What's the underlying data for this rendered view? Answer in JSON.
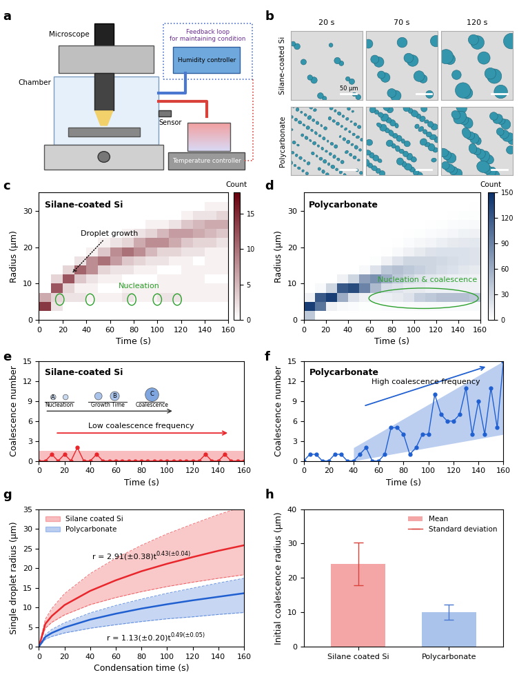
{
  "panel_labels": [
    "a",
    "b",
    "c",
    "d",
    "e",
    "f",
    "g",
    "h"
  ],
  "diagram_a": {
    "labels": {
      "microscope": "Microscope",
      "chamber": "Chamber",
      "feedback": "Feedback loop\nfor maintaining condition",
      "humidity": "Humidity controller",
      "sensor": "Sensor",
      "temperature": "Temperature controller"
    }
  },
  "images_b": {
    "times": [
      "20 s",
      "70 s",
      "120 s"
    ],
    "rows": [
      "Silane-coated Si",
      "Polycarbonate"
    ],
    "scale_bar": "50 μm"
  },
  "chart_data": [
    {
      "type": "heatmap",
      "title": "Silane-coated Si",
      "x_label": "Time (s)",
      "y_label": "Radius (μm)",
      "color": "#67000d",
      "x_edges": [
        0,
        10,
        20,
        30,
        40,
        50,
        60,
        70,
        80,
        90,
        100,
        110,
        120,
        130,
        140,
        150,
        160
      ],
      "y_edges": [
        0,
        2.5,
        5,
        7.5,
        10,
        12.5,
        15,
        17.5,
        20,
        22.5,
        25,
        27.5,
        30,
        32.5,
        35
      ],
      "counts": [
        [
          0,
          14,
          6,
          0,
          0,
          0,
          0,
          0,
          0,
          0,
          0,
          0,
          0,
          0
        ],
        [
          0,
          2,
          3,
          12,
          3,
          0,
          0,
          0,
          0,
          0,
          0,
          0,
          0,
          0
        ],
        [
          0,
          0,
          2,
          3,
          12,
          3,
          0,
          0,
          0,
          0,
          0,
          0,
          0,
          0
        ],
        [
          0,
          0,
          2,
          1,
          4,
          11,
          2,
          0,
          0,
          0,
          0,
          0,
          0,
          0
        ],
        [
          0,
          0,
          1,
          1,
          2,
          8,
          8,
          1,
          0,
          0,
          0,
          0,
          0,
          0
        ],
        [
          0,
          0,
          1,
          0,
          1,
          3,
          10,
          4,
          1,
          0,
          0,
          0,
          0,
          0
        ],
        [
          0,
          0,
          1,
          0,
          1,
          2,
          7,
          8,
          2,
          0,
          0,
          0,
          0,
          0
        ],
        [
          0,
          0,
          2,
          1,
          0,
          2,
          4,
          10,
          3,
          1,
          0,
          0,
          0,
          0
        ],
        [
          0,
          0,
          1,
          1,
          0,
          1,
          3,
          8,
          6,
          2,
          0,
          0,
          0,
          0
        ],
        [
          0,
          0,
          1,
          1,
          0,
          1,
          2,
          5,
          8,
          3,
          1,
          0,
          0,
          0
        ],
        [
          0,
          0,
          2,
          1,
          1,
          0,
          2,
          3,
          8,
          5,
          1,
          0,
          0,
          0
        ],
        [
          0,
          0,
          2,
          1,
          1,
          0,
          1,
          3,
          6,
          7,
          2,
          0,
          0,
          0
        ],
        [
          0,
          0,
          1,
          1,
          1,
          1,
          1,
          2,
          4,
          7,
          4,
          1,
          0,
          0
        ],
        [
          0,
          0,
          1,
          1,
          1,
          1,
          0,
          2,
          3,
          6,
          5,
          2,
          0,
          0
        ],
        [
          0,
          0,
          1,
          1,
          0,
          1,
          1,
          1,
          3,
          5,
          6,
          2,
          1,
          0
        ],
        [
          0,
          0,
          1,
          1,
          0,
          1,
          1,
          1,
          2,
          4,
          6,
          3,
          1,
          0
        ]
      ],
      "colorbar": {
        "label": "Count",
        "range": [
          0,
          18
        ],
        "ticks": [
          0,
          5,
          10,
          15
        ]
      },
      "xlim": [
        0,
        160
      ],
      "xticks": [
        0,
        20,
        40,
        60,
        80,
        100,
        120,
        140,
        160
      ],
      "ylim": [
        0,
        35
      ],
      "yticks": [
        0,
        10,
        20,
        30
      ],
      "annotations": [
        {
          "text": "Droplet growth",
          "color": "#000000"
        },
        {
          "text": "Nucleation",
          "color": "#2ca02c"
        }
      ]
    },
    {
      "type": "heatmap",
      "title": "Polycarbonate",
      "x_label": "Time (s)",
      "y_label": "Radius (μm)",
      "color": "#08306b",
      "x_edges": [
        0,
        10,
        20,
        30,
        40,
        50,
        60,
        70,
        80,
        90,
        100,
        110,
        120,
        130,
        140,
        150,
        160
      ],
      "y_edges": [
        0,
        2.5,
        5,
        7.5,
        10,
        12.5,
        15,
        17.5,
        20,
        22.5,
        25,
        27.5,
        30,
        32.5,
        35
      ],
      "counts": [
        [
          40,
          140,
          10,
          0,
          0,
          0,
          0,
          0,
          0,
          0,
          0,
          0,
          0,
          0
        ],
        [
          0,
          100,
          120,
          5,
          0,
          0,
          0,
          0,
          0,
          0,
          0,
          0,
          0,
          0
        ],
        [
          0,
          10,
          140,
          30,
          0,
          0,
          0,
          0,
          0,
          0,
          0,
          0,
          0,
          0
        ],
        [
          0,
          5,
          60,
          120,
          10,
          0,
          0,
          0,
          0,
          0,
          0,
          0,
          0,
          0
        ],
        [
          0,
          3,
          20,
          130,
          30,
          0,
          0,
          0,
          0,
          0,
          0,
          0,
          0,
          0
        ],
        [
          0,
          2,
          10,
          90,
          70,
          5,
          0,
          0,
          0,
          0,
          0,
          0,
          0,
          0
        ],
        [
          0,
          2,
          10,
          50,
          80,
          20,
          2,
          0,
          0,
          0,
          0,
          0,
          0,
          0
        ],
        [
          0,
          3,
          12,
          25,
          60,
          40,
          10,
          1,
          0,
          0,
          0,
          0,
          0,
          0
        ],
        [
          0,
          3,
          15,
          20,
          40,
          45,
          20,
          5,
          1,
          0,
          0,
          0,
          0,
          0
        ],
        [
          0,
          4,
          20,
          15,
          30,
          40,
          30,
          10,
          3,
          1,
          0,
          0,
          0,
          0
        ],
        [
          0,
          5,
          35,
          15,
          20,
          35,
          30,
          15,
          6,
          2,
          0,
          0,
          0,
          0
        ],
        [
          0,
          5,
          40,
          12,
          18,
          30,
          30,
          20,
          8,
          3,
          1,
          0,
          0,
          0
        ],
        [
          0,
          5,
          45,
          12,
          15,
          25,
          28,
          22,
          12,
          5,
          2,
          0,
          0,
          0
        ],
        [
          0,
          4,
          45,
          12,
          12,
          22,
          25,
          22,
          15,
          7,
          3,
          1,
          0,
          0
        ],
        [
          0,
          4,
          45,
          10,
          12,
          18,
          22,
          22,
          16,
          9,
          4,
          2,
          0,
          0
        ],
        [
          0,
          4,
          40,
          10,
          10,
          15,
          20,
          20,
          17,
          10,
          5,
          2,
          1,
          0
        ]
      ],
      "colorbar": {
        "label": "Count",
        "range": [
          0,
          150
        ],
        "ticks": [
          0,
          30,
          60,
          90,
          120,
          150
        ]
      },
      "xlim": [
        0,
        160
      ],
      "xticks": [
        0,
        20,
        40,
        60,
        80,
        100,
        120,
        140,
        160
      ],
      "ylim": [
        0,
        35
      ],
      "yticks": [
        0,
        10,
        20,
        30
      ],
      "annotations": [
        {
          "text": "Nucleation & coalescence",
          "color": "#2ca02c"
        }
      ]
    },
    {
      "type": "line",
      "title": "Silane-coated Si",
      "x_label": "Time (s)",
      "y_label": "Coalescence number",
      "color": "#e8262b",
      "marker": "o",
      "x": [
        0,
        5,
        10,
        15,
        20,
        25,
        30,
        35,
        40,
        45,
        50,
        55,
        60,
        65,
        70,
        75,
        80,
        85,
        90,
        95,
        100,
        105,
        110,
        115,
        120,
        125,
        130,
        135,
        140,
        145,
        150,
        155,
        160
      ],
      "values": [
        0,
        0,
        1,
        0,
        1,
        0,
        2,
        0,
        0,
        1,
        0,
        0,
        0,
        0,
        0,
        0,
        0,
        0,
        0,
        0,
        0,
        0,
        0,
        0,
        0,
        0,
        1,
        0,
        0,
        1,
        0,
        0,
        0
      ],
      "band": {
        "x": [
          0,
          160
        ],
        "lower": [
          0,
          0
        ],
        "upper": [
          1.5,
          1.5
        ]
      },
      "xlim": [
        0,
        160
      ],
      "xticks": [
        0,
        20,
        40,
        60,
        80,
        100,
        120,
        140,
        160
      ],
      "ylim": [
        0,
        15
      ],
      "yticks": [
        0,
        3,
        6,
        9,
        12,
        15
      ],
      "annotations": [
        {
          "text": "Low coalescence frequency"
        }
      ],
      "inset": {
        "droplets": [
          "A",
          "B",
          "C"
        ],
        "stages": [
          "Nucleation",
          "Growth Time",
          "Coalescence"
        ]
      }
    },
    {
      "type": "line",
      "title": "Polycarbonate",
      "x_label": "Time (s)",
      "y_label": "Coalescence number",
      "color": "#1f5fd0",
      "marker": "o",
      "x": [
        0,
        5,
        10,
        15,
        20,
        25,
        30,
        35,
        40,
        45,
        50,
        55,
        60,
        65,
        70,
        75,
        80,
        85,
        90,
        95,
        100,
        105,
        110,
        115,
        120,
        125,
        130,
        135,
        140,
        145,
        150,
        155,
        160
      ],
      "values": [
        0,
        1,
        1,
        0,
        0,
        1,
        1,
        0,
        0,
        1,
        2,
        0,
        0,
        1,
        5,
        5,
        4,
        1,
        2,
        4,
        4,
        10,
        7,
        6,
        6,
        7,
        11,
        4,
        9,
        4,
        11,
        5,
        15
      ],
      "band": {
        "x": [
          40,
          160
        ],
        "lower": [
          0,
          4
        ],
        "upper": [
          2,
          15
        ]
      },
      "xlim": [
        0,
        160
      ],
      "xticks": [
        0,
        20,
        40,
        60,
        80,
        100,
        120,
        140,
        160
      ],
      "ylim": [
        0,
        15
      ],
      "yticks": [
        0,
        3,
        6,
        9,
        12,
        15
      ],
      "annotations": [
        {
          "text": "High coalescence frequency"
        }
      ]
    },
    {
      "type": "line",
      "x_label": "Condensation time (s)",
      "y_label": "Single droplet radius (μm)",
      "legend": "upper left",
      "x": [
        0,
        5,
        10,
        20,
        40,
        60,
        80,
        100,
        120,
        140,
        160
      ],
      "series": [
        {
          "name": "Silane coated Si",
          "color": "#e8262b",
          "values": [
            0,
            5.8,
            7.8,
            10.6,
            14.2,
            16.9,
            19.2,
            21.1,
            22.8,
            24.4,
            25.8
          ],
          "lower": [
            0,
            4.7,
            6.2,
            8.1,
            10.7,
            12.5,
            14.0,
            15.3,
            16.4,
            17.4,
            18.3
          ],
          "upper": [
            0,
            7.0,
            9.7,
            13.5,
            18.6,
            22.5,
            25.8,
            28.7,
            31.2,
            33.6,
            35.7
          ],
          "equation": {
            "base": "r = 2.91(±0.38)t",
            "exponent": "0.43(±0.04)"
          }
        },
        {
          "name": "Polycarbonate",
          "color": "#1f5fd0",
          "values": [
            0,
            2.5,
            3.5,
            4.9,
            6.9,
            8.4,
            9.7,
            10.8,
            11.8,
            12.7,
            13.6
          ],
          "lower": [
            0,
            1.9,
            2.6,
            3.5,
            4.7,
            5.6,
            6.4,
            7.1,
            7.6,
            8.2,
            8.7
          ],
          "upper": [
            0,
            3.1,
            4.4,
            6.1,
            8.6,
            10.5,
            12.1,
            13.6,
            14.9,
            16.2,
            17.4
          ],
          "equation": {
            "base": "r = 1.13(±0.20)t",
            "exponent": "0.49(±0.05)"
          }
        }
      ],
      "xlim": [
        0,
        160
      ],
      "xticks": [
        0,
        20,
        40,
        60,
        80,
        100,
        120,
        140,
        160
      ],
      "ylim": [
        0,
        35
      ],
      "yticks": [
        0,
        5,
        10,
        15,
        20,
        25,
        30,
        35
      ]
    },
    {
      "type": "bar",
      "y_label": "Initial coalescence radius (μm)",
      "categories": [
        "Silane coated Si",
        "Polycarbonate"
      ],
      "values": [
        24,
        10
      ],
      "errors": [
        6.2,
        2.2
      ],
      "colors": [
        "#f4a6a6",
        "#a9c3ea"
      ],
      "legend": "upper right",
      "legend_entries": [
        "Mean",
        "Standard deviation"
      ],
      "ylim": [
        0,
        40
      ],
      "yticks": [
        0,
        10,
        20,
        30,
        40
      ]
    }
  ]
}
